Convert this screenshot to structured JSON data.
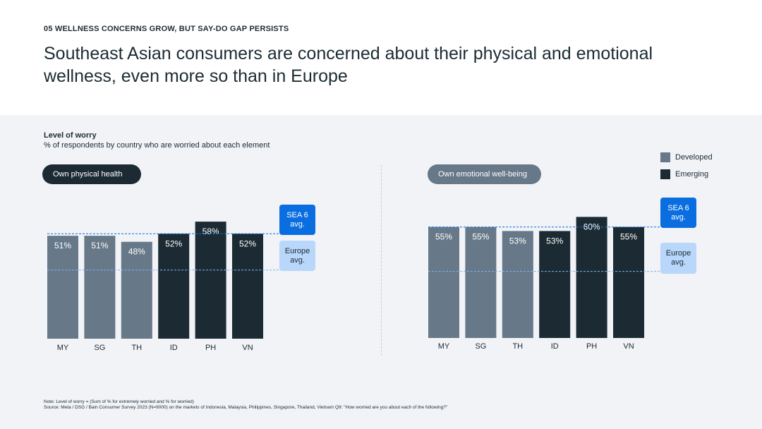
{
  "header": {
    "eyebrow": "05 WELLNESS CONCERNS GROW, BUT SAY-DO GAP PERSISTS",
    "headline": "Southeast Asian consumers are concerned about their physical and emotional wellness, even more so than in Europe"
  },
  "subtitle": {
    "title": "Level of worry",
    "description": "% of respondents by country who are worried about each element"
  },
  "legend": {
    "developed": "Developed",
    "emerging": "Emerging"
  },
  "colors": {
    "developed": "#677888",
    "emerging": "#1c2b33",
    "sea_avg": "#0a6ee0",
    "europe_avg": "#b8d7fb"
  },
  "avg_labels": {
    "sea_line1": "SEA 6",
    "sea_line2": "avg.",
    "europe_line1": "Europe",
    "europe_line2": "avg."
  },
  "chart_data": [
    {
      "type": "bar",
      "title": "Own physical health",
      "categories": [
        "MY",
        "SG",
        "TH",
        "ID",
        "PH",
        "VN"
      ],
      "values": [
        51,
        51,
        48,
        52,
        58,
        52
      ],
      "labels": [
        "51%",
        "51%",
        "48%",
        "52%",
        "58%",
        "52%"
      ],
      "groups": [
        "Developed",
        "Developed",
        "Developed",
        "Emerging",
        "Emerging",
        "Emerging"
      ],
      "sea_avg": 52,
      "europe_avg": 34,
      "ylim": [
        0,
        100
      ]
    },
    {
      "type": "bar",
      "title": "Own emotional well-being",
      "categories": [
        "MY",
        "SG",
        "TH",
        "ID",
        "PH",
        "VN"
      ],
      "values": [
        55,
        55,
        53,
        53,
        60,
        55
      ],
      "labels": [
        "55%",
        "55%",
        "53%",
        "53%",
        "60%",
        "55%"
      ],
      "groups": [
        "Developed",
        "Developed",
        "Developed",
        "Emerging",
        "Emerging",
        "Emerging"
      ],
      "sea_avg": 55,
      "europe_avg": 33,
      "ylim": [
        0,
        100
      ]
    }
  ],
  "footnotes": {
    "note": "Note: Level of worry = (Sum of % for extremely worried and % for worried)",
    "source": "Source: Meta / DSG / Bain Consumer Survey 2023 (N=9000) on the markets of Indonesia, Malaysia, Philippines, Singapore, Thailand, Vietnam Q9: \"How worried are you about each of the following?\""
  }
}
